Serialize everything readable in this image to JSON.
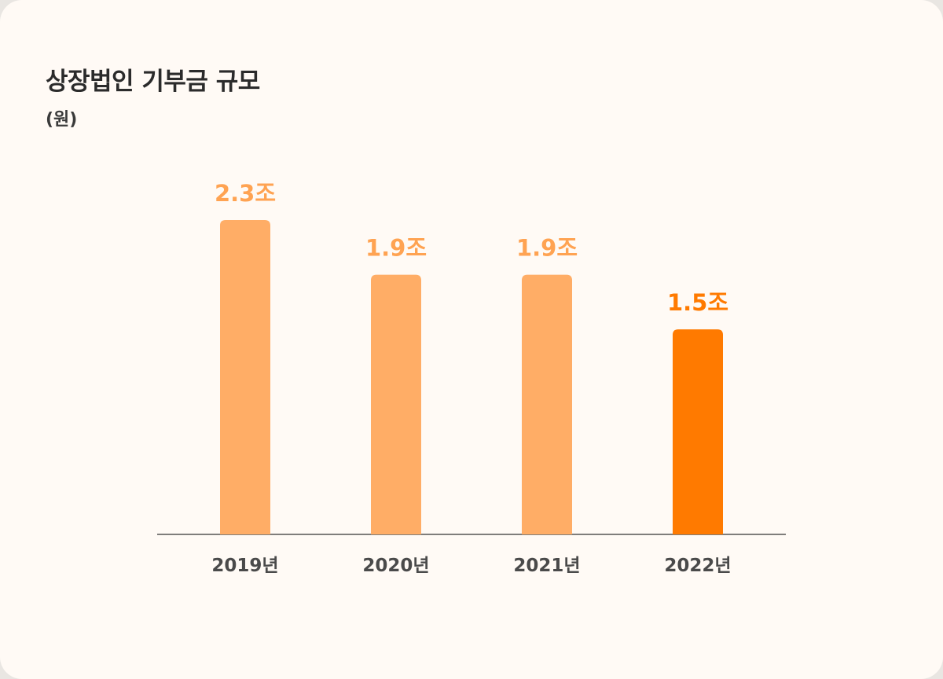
{
  "chart_data": {
    "type": "bar",
    "title": "상장법인 기부금 규모",
    "unit_label": "(원)",
    "categories": [
      "2019년",
      "2020년",
      "2021년",
      "2022년"
    ],
    "values": [
      2.3,
      1.9,
      1.9,
      1.5
    ],
    "value_labels": [
      "2.3조",
      "1.9조",
      "1.9조",
      "1.5조"
    ],
    "ylim": [
      0,
      2.3
    ],
    "grid": false,
    "legend": "none",
    "highlight_index": 3,
    "colors": {
      "bar": "#ffad66",
      "bar_highlight": "#ff7a00",
      "label": "#ffa352",
      "label_highlight": "#ff7a00",
      "axis": "#333333"
    }
  }
}
